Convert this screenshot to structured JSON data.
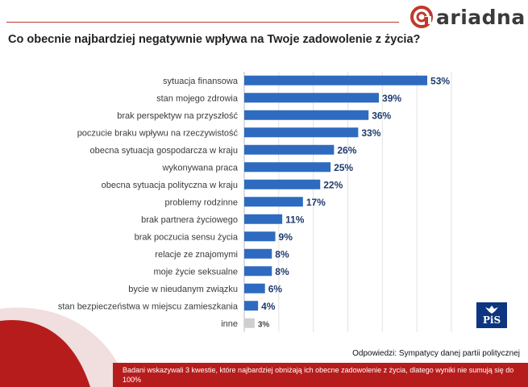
{
  "header": {
    "title": "Co obecnie najbardziej  negatywnie wpływa na Twoje zadowolenie z życia?"
  },
  "brand": {
    "name": "ariadna",
    "accent_color": "#c0392b"
  },
  "chart_data": {
    "type": "bar",
    "orientation": "horizontal",
    "title": "Co obecnie najbardziej  negatywnie wpływa na Twoje zadowolenie z życia?",
    "categories": [
      "sytuacja finansowa",
      "stan mojego zdrowia",
      "brak perspektyw na przyszłość",
      "poczucie braku wpływu na rzeczywistość",
      "obecna sytuacja gospodarcza w kraju",
      "wykonywana praca",
      "obecna sytuacja polityczna w kraju",
      "problemy rodzinne",
      "brak partnera życiowego",
      "brak poczucia sensu życia",
      "relacje ze znajomymi",
      "moje życie seksualne",
      "bycie w nieudanym związku",
      "stan bezpieczeństwa w miejscu zamieszkania",
      "inne"
    ],
    "values": [
      53,
      39,
      36,
      33,
      26,
      25,
      22,
      17,
      11,
      9,
      8,
      8,
      6,
      4,
      3
    ],
    "value_labels": [
      "53%",
      "39%",
      "36%",
      "33%",
      "26%",
      "25%",
      "22%",
      "17%",
      "11%",
      "9%",
      "8%",
      "8%",
      "6%",
      "4%",
      "3%"
    ],
    "bar_color": "#2e6bc0",
    "other_bar_color": "#cfcfcf",
    "xlim": [
      0,
      60
    ],
    "grid": true,
    "xlabel": "",
    "ylabel": ""
  },
  "answers_note": "Odpowiedzi:  Sympatycy danej partii politycznej",
  "footer": {
    "text": "Badani wskazywali 3 kwestie, które najbardziej obniżają ich obecne zadowolenie z życia, dlatego wyniki nie sumują się do 100%"
  },
  "party_logo": {
    "text": "PiS",
    "color": "#0d3580"
  }
}
